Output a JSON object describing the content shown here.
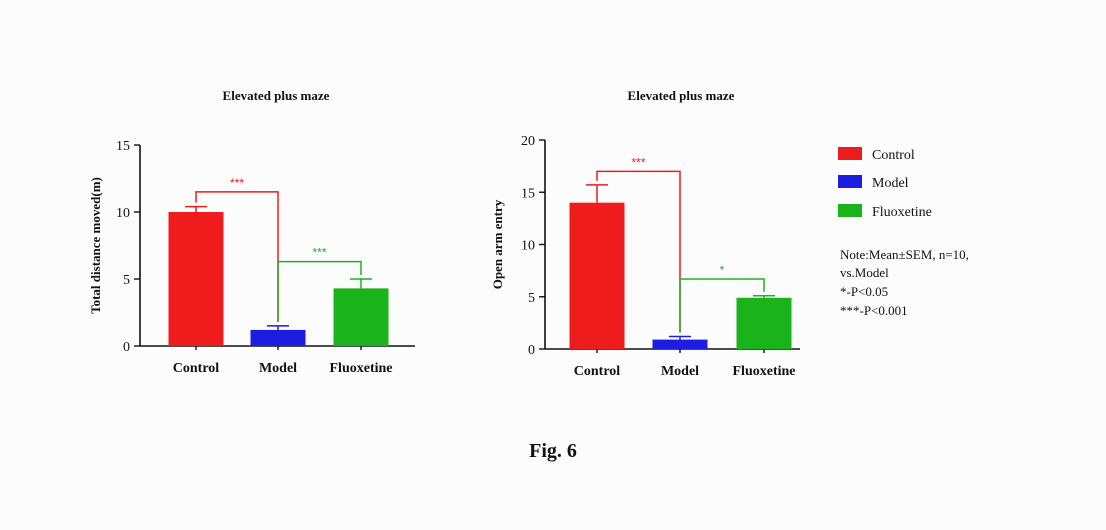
{
  "figure": {
    "caption": "Fig. 6",
    "colors": {
      "Control": "#ee1c1c",
      "Model": "#1d1de0",
      "Fluoxetine": "#1bb31b"
    },
    "legend": [
      {
        "label": "Control",
        "color": "#ee1c1c"
      },
      {
        "label": "Model",
        "color": "#1d1de0"
      },
      {
        "label": "Fluoxetine",
        "color": "#1bb31b"
      }
    ],
    "note_lines": [
      "Note:Mean±SEM,   n=10,",
      "vs.Model",
      "*-P<0.05",
      "***-P<0.001"
    ]
  },
  "chart_data": [
    {
      "type": "bar",
      "title": "Elevated plus maze",
      "xlabel": "",
      "ylabel": "Total distance moved(m)",
      "categories": [
        "Control",
        "Model",
        "Fluoxetine"
      ],
      "values": [
        10.0,
        1.2,
        4.3
      ],
      "errors": [
        0.4,
        0.3,
        0.7
      ],
      "ylim": [
        0,
        15
      ],
      "yticks": [
        0,
        5,
        10,
        15
      ],
      "significance": [
        {
          "from": 0,
          "to": 1,
          "label": "***",
          "color": "#ee1c1c",
          "y": 11.5
        },
        {
          "from": 1,
          "to": 2,
          "label": "***",
          "color": "#1bb31b",
          "y": 6.3
        }
      ]
    },
    {
      "type": "bar",
      "title": "Elevated plus maze",
      "xlabel": "",
      "ylabel": "Open arm entry",
      "categories": [
        "Control",
        "Model",
        "Fluoxetine"
      ],
      "values": [
        14.0,
        0.9,
        4.9
      ],
      "errors": [
        1.7,
        0.3,
        0.2
      ],
      "ylim": [
        0,
        20
      ],
      "yticks": [
        0,
        5,
        10,
        15,
        20
      ],
      "significance": [
        {
          "from": 0,
          "to": 1,
          "label": "***",
          "color": "#ee1c1c",
          "y": 17.0
        },
        {
          "from": 1,
          "to": 2,
          "label": "*",
          "color": "#1bb31b",
          "y": 6.7
        }
      ]
    }
  ]
}
